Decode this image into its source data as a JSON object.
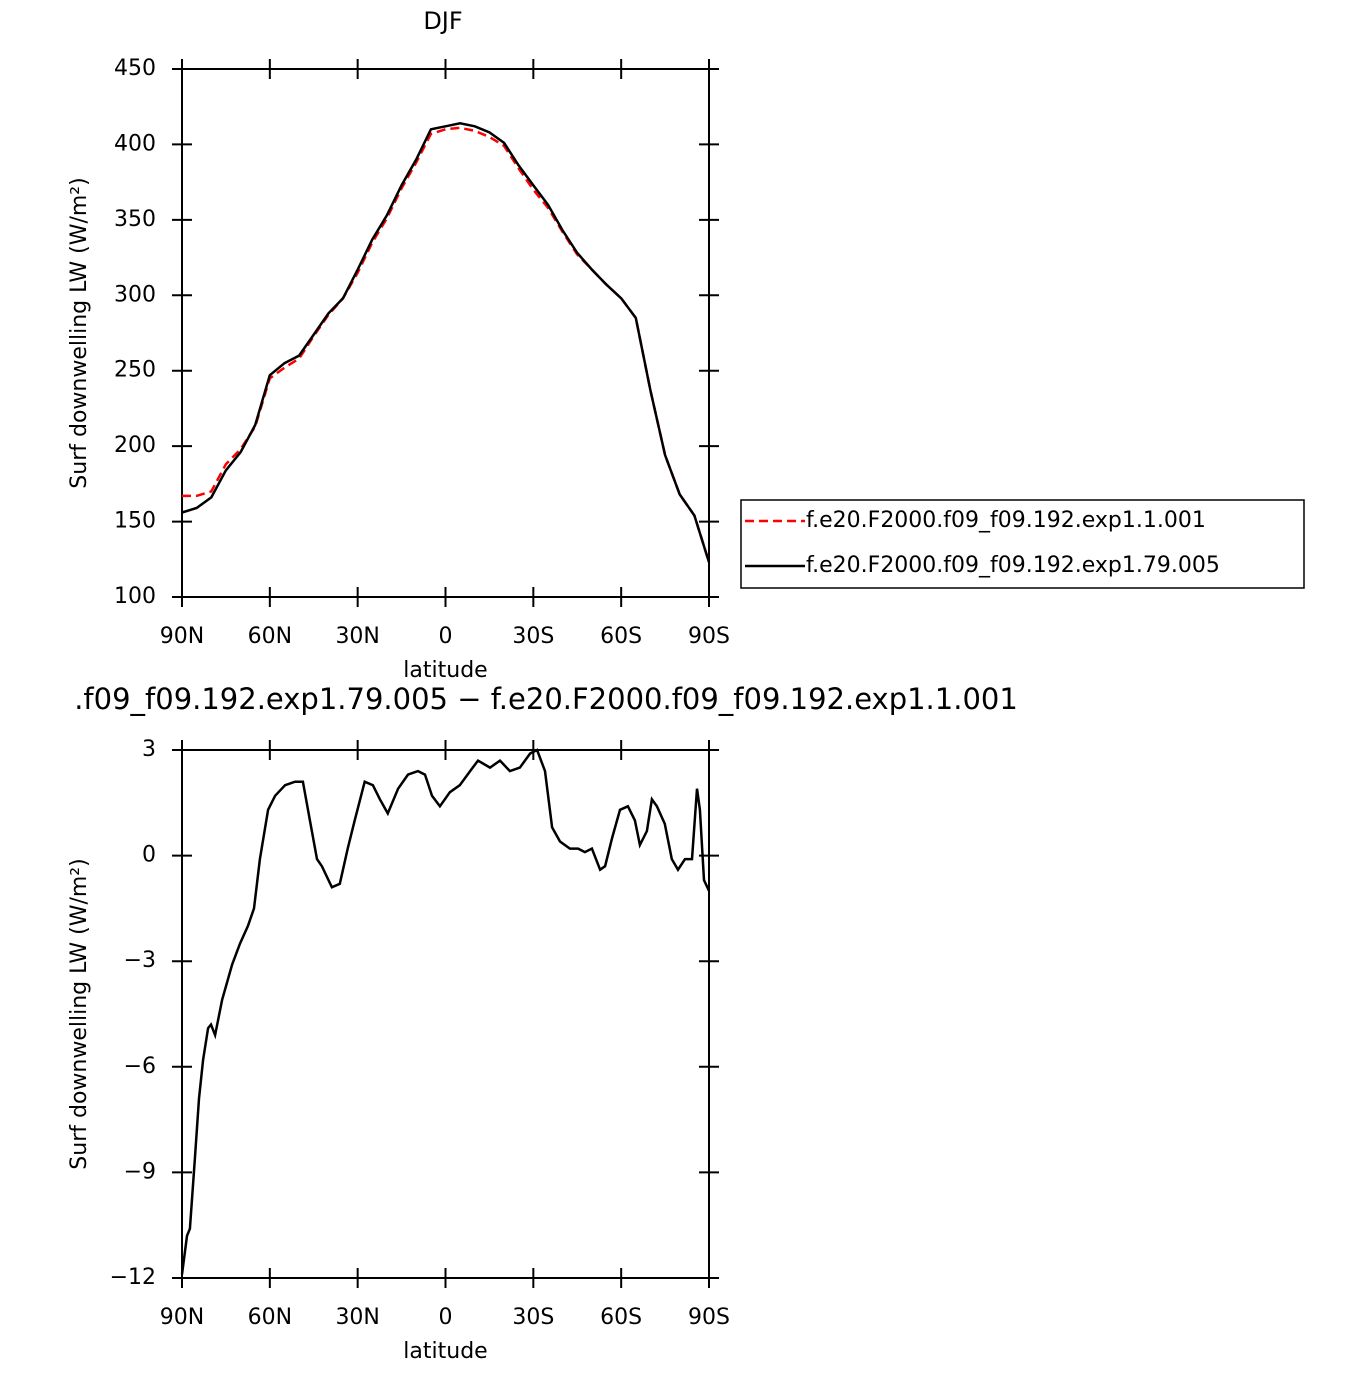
{
  "chart_data": [
    {
      "type": "line",
      "title": "DJF",
      "xlabel": "latitude",
      "ylabel": "Surf downwelling LW (W/m²)",
      "x": [
        90,
        85,
        80,
        75,
        70,
        65,
        60,
        55,
        50,
        45,
        40,
        35,
        30,
        25,
        20,
        15,
        10,
        5,
        0,
        -5,
        -10,
        -15,
        -20,
        -25,
        -30,
        -35,
        -40,
        -45,
        -50,
        -55,
        -60,
        -65,
        -70,
        -75,
        -80,
        -85,
        -90
      ],
      "series": [
        {
          "name": "f.e20.F2000.f09_f09.192.exp1.1.001",
          "color": "#ff0000",
          "line_style": "dashed",
          "values": [
            167,
            167,
            170,
            188,
            198,
            213,
            245,
            252,
            258,
            273,
            287,
            298,
            315,
            335,
            351,
            371,
            388,
            407,
            410,
            411,
            409,
            405,
            399,
            384,
            370,
            358,
            342,
            327,
            317,
            307,
            298,
            285,
            237,
            194,
            168,
            154,
            123
          ]
        },
        {
          "name": "f.e20.F2000.f09_f09.192.exp1.79.005",
          "color": "#000000",
          "line_style": "solid",
          "values": [
            156,
            159,
            166,
            184,
            196,
            214,
            247,
            255,
            260,
            274,
            288,
            298,
            317,
            337,
            353,
            373,
            390,
            410,
            412,
            414,
            412,
            408,
            401,
            386,
            373,
            360,
            343,
            328,
            317,
            307,
            298,
            285,
            237,
            194,
            168,
            154,
            123
          ]
        }
      ],
      "xlim": [
        90,
        -90
      ],
      "xticks": [
        {
          "value": 90,
          "label": "90N"
        },
        {
          "value": 60,
          "label": "60N"
        },
        {
          "value": 30,
          "label": "30N"
        },
        0,
        {
          "value": -30,
          "label": "30S"
        },
        {
          "value": -60,
          "label": "60S"
        },
        {
          "value": -90,
          "label": "90S"
        }
      ],
      "ylim": [
        100,
        450
      ],
      "yticks": [
        100,
        150,
        200,
        250,
        300,
        350,
        400,
        450
      ],
      "legend": "right"
    },
    {
      "type": "line",
      "title": ".f09_f09.192.exp1.79.005 − f.e20.F2000.f09_f09.192.exp1.1.001",
      "xlabel": "latitude",
      "ylabel": "Surf downwelling LW (W/m²)",
      "x": [
        90,
        88.3,
        87.3,
        85.6,
        84.2,
        82.8,
        81.1,
        80.1,
        78.7,
        76.3,
        72.9,
        70.2,
        67.5,
        65.4,
        63.4,
        60.6,
        58.2,
        54.8,
        51.4,
        48.7,
        46.3,
        43.9,
        42.2,
        38.8,
        36.1,
        33.4,
        31.0,
        27.6,
        24.8,
        22.4,
        19.7,
        16.2,
        12.8,
        9.4,
        7.0,
        4.6,
        1.9,
        -1.5,
        -4.9,
        -8.4,
        -11.1,
        -15.2,
        -18.6,
        -22.0,
        -25.4,
        -28.9,
        -31.3,
        -34.0,
        -36.4,
        -39.1,
        -42.5,
        -45.3,
        -47.6,
        -50.0,
        -52.8,
        -54.5,
        -56.9,
        -59.6,
        -62.3,
        -64.7,
        -66.4,
        -68.8,
        -70.5,
        -72.2,
        -74.9,
        -77.3,
        -79.4,
        -81.8,
        -84.2,
        -85.9,
        -86.9,
        -88.3,
        -90
      ],
      "series": [
        {
          "name": null,
          "color": "#000000",
          "line_style": "solid",
          "values": [
            -11.9,
            -10.8,
            -10.6,
            -8.6,
            -6.9,
            -5.8,
            -4.9,
            -4.8,
            -5.1,
            -4.1,
            -3.1,
            -2.5,
            -2.0,
            -1.5,
            -0.1,
            1.3,
            1.7,
            2.0,
            2.1,
            2.1,
            1.0,
            -0.1,
            -0.3,
            -0.9,
            -0.8,
            0.2,
            1.0,
            2.1,
            2.0,
            1.6,
            1.2,
            1.9,
            2.3,
            2.4,
            2.3,
            1.7,
            1.4,
            1.8,
            2.0,
            2.4,
            2.7,
            2.5,
            2.7,
            2.4,
            2.5,
            2.9,
            3.0,
            2.4,
            0.8,
            0.4,
            0.2,
            0.2,
            0.1,
            0.2,
            -0.4,
            -0.3,
            0.5,
            1.3,
            1.4,
            1.0,
            0.3,
            0.7,
            1.6,
            1.4,
            0.9,
            -0.1,
            -0.4,
            -0.1,
            -0.1,
            1.9,
            1.3,
            -0.7,
            -1.0
          ]
        }
      ],
      "xlim": [
        90,
        -90
      ],
      "xticks": [
        {
          "value": 90,
          "label": "90N"
        },
        {
          "value": 60,
          "label": "60N"
        },
        {
          "value": 30,
          "label": "30N"
        },
        0,
        {
          "value": -30,
          "label": "30S"
        },
        {
          "value": -60,
          "label": "60S"
        },
        {
          "value": -90,
          "label": "90S"
        }
      ],
      "ylim": [
        -12,
        3
      ],
      "yticks": [
        {
          "value": -12,
          "label": "−12"
        },
        {
          "value": -9,
          "label": "−9"
        },
        {
          "value": -6,
          "label": "−6"
        },
        {
          "value": -3,
          "label": "−3"
        },
        0,
        3
      ]
    }
  ]
}
